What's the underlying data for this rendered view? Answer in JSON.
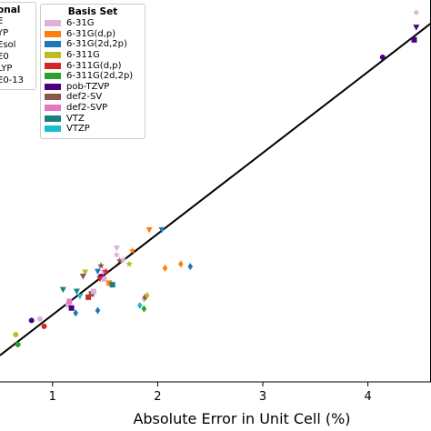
{
  "chart_data": {
    "type": "scatter",
    "xlabel": "Absolute Error in Unit Cell (%)",
    "ylabel": "",
    "x_ticks": [
      "1",
      "2",
      "3",
      "4"
    ],
    "xlim": [
      0.5,
      4.6
    ],
    "ylim": [
      0.0,
      4.6
    ],
    "grid": false,
    "legend_functional": {
      "title": "onal",
      "entries": [
        "E",
        "YP",
        "Esol",
        "E0",
        "LYP",
        "E0-13"
      ]
    },
    "legend_basis": {
      "title": "Basis Set",
      "entries": [
        {
          "name": "6-31G",
          "color": "#e0b0d8",
          "marker": "square"
        },
        {
          "name": "6-31G(d,p)",
          "color": "#ff7f0e",
          "marker": "square"
        },
        {
          "name": "6-31G(2d,2p)",
          "color": "#1f77b4",
          "marker": "square"
        },
        {
          "name": "6-311G",
          "color": "#bcbd22",
          "marker": "square"
        },
        {
          "name": "6-311G(d,p)",
          "color": "#d62728",
          "marker": "square"
        },
        {
          "name": "6-311G(2d,2p)",
          "color": "#2ca02c",
          "marker": "square"
        },
        {
          "name": "pob-TZVP",
          "color": "#4b0082",
          "marker": "square"
        },
        {
          "name": "def2-SV",
          "color": "#8c564b",
          "marker": "square"
        },
        {
          "name": "def2-SVP",
          "color": "#e377c2",
          "marker": "square"
        },
        {
          "name": "VTZ",
          "color": "#1a7f7f",
          "marker": "square"
        },
        {
          "name": "VTZP",
          "color": "#17becf",
          "marker": "square"
        }
      ]
    },
    "fit_line": {
      "x": [
        0.5,
        4.6
      ],
      "y": [
        0.32,
        4.32
      ],
      "color": "#000000"
    },
    "points": [
      {
        "x": 0.88,
        "y": 0.76,
        "color": "#e0b0d8",
        "marker": "circle"
      },
      {
        "x": 0.92,
        "y": 0.67,
        "color": "#d62728",
        "marker": "circle"
      },
      {
        "x": 0.8,
        "y": 0.74,
        "color": "#4b0082",
        "marker": "circle"
      },
      {
        "x": 0.65,
        "y": 0.57,
        "color": "#bcbd22",
        "marker": "circle"
      },
      {
        "x": 0.67,
        "y": 0.45,
        "color": "#2ca02c",
        "marker": "circle"
      },
      {
        "x": 1.15,
        "y": 0.93,
        "color": "#e0b0d8",
        "marker": "square"
      },
      {
        "x": 1.16,
        "y": 0.97,
        "color": "#e377c2",
        "marker": "square"
      },
      {
        "x": 1.18,
        "y": 0.89,
        "color": "#4b0082",
        "marker": "square"
      },
      {
        "x": 1.22,
        "y": 0.83,
        "color": "#1f77b4",
        "marker": "diamond"
      },
      {
        "x": 1.34,
        "y": 1.02,
        "color": "#d62728",
        "marker": "square"
      },
      {
        "x": 1.37,
        "y": 1.06,
        "color": "#8c564b",
        "marker": "square"
      },
      {
        "x": 1.39,
        "y": 1.09,
        "color": "#e0b0d8",
        "marker": "square"
      },
      {
        "x": 1.43,
        "y": 0.86,
        "color": "#1f77b4",
        "marker": "diamond"
      },
      {
        "x": 1.46,
        "y": 1.27,
        "color": "#4b0082",
        "marker": "circle"
      },
      {
        "x": 1.49,
        "y": 1.24,
        "color": "#e0b0d8",
        "marker": "square"
      },
      {
        "x": 1.54,
        "y": 1.19,
        "color": "#ff7f0e",
        "marker": "square"
      },
      {
        "x": 1.57,
        "y": 1.17,
        "color": "#1a7f7f",
        "marker": "square"
      },
      {
        "x": 1.49,
        "y": 1.33,
        "color": "#e377c2",
        "marker": "star"
      },
      {
        "x": 1.51,
        "y": 1.33,
        "color": "#d62728",
        "marker": "star"
      },
      {
        "x": 1.46,
        "y": 1.4,
        "color": "#8c564b",
        "marker": "star"
      },
      {
        "x": 1.61,
        "y": 1.53,
        "color": "#e0b0d8",
        "marker": "star"
      },
      {
        "x": 1.76,
        "y": 1.58,
        "color": "#ff7f0e",
        "marker": "star"
      },
      {
        "x": 1.64,
        "y": 1.46,
        "color": "#8c564b",
        "marker": "star"
      },
      {
        "x": 1.67,
        "y": 1.47,
        "color": "#e0b0d8",
        "marker": "star"
      },
      {
        "x": 1.73,
        "y": 1.42,
        "color": "#bcbd22",
        "marker": "star"
      },
      {
        "x": 1.1,
        "y": 1.11,
        "color": "#1a7f7f",
        "marker": "triangle-down"
      },
      {
        "x": 1.23,
        "y": 1.09,
        "color": "#1a7f7f",
        "marker": "triangle-down"
      },
      {
        "x": 1.31,
        "y": 1.32,
        "color": "#bcbd22",
        "marker": "triangle-down"
      },
      {
        "x": 1.43,
        "y": 1.33,
        "color": "#1f77b4",
        "marker": "triangle-down"
      },
      {
        "x": 1.45,
        "y": 1.24,
        "color": "#d62728",
        "marker": "triangle-down"
      },
      {
        "x": 1.61,
        "y": 1.61,
        "color": "#e0b0d8",
        "marker": "triangle-down"
      },
      {
        "x": 1.92,
        "y": 1.83,
        "color": "#ff7f0e",
        "marker": "triangle-down"
      },
      {
        "x": 2.04,
        "y": 1.83,
        "color": "#1f77b4",
        "marker": "triangle-down"
      },
      {
        "x": 1.26,
        "y": 1.03,
        "color": "#17becf",
        "marker": "triangle-down"
      },
      {
        "x": 1.29,
        "y": 1.27,
        "color": "#8c564b",
        "marker": "triangle-down"
      },
      {
        "x": 1.87,
        "y": 1.0,
        "color": "#e0b0d8",
        "marker": "diamond"
      },
      {
        "x": 1.88,
        "y": 1.02,
        "color": "#8c564b",
        "marker": "diamond"
      },
      {
        "x": 1.9,
        "y": 1.04,
        "color": "#bcbd22",
        "marker": "diamond"
      },
      {
        "x": 1.83,
        "y": 0.92,
        "color": "#17becf",
        "marker": "diamond"
      },
      {
        "x": 1.87,
        "y": 0.88,
        "color": "#2ca02c",
        "marker": "diamond"
      },
      {
        "x": 2.07,
        "y": 1.37,
        "color": "#ff7f0e",
        "marker": "diamond"
      },
      {
        "x": 2.22,
        "y": 1.42,
        "color": "#ff7f0e",
        "marker": "diamond"
      },
      {
        "x": 2.31,
        "y": 1.39,
        "color": "#1f77b4",
        "marker": "diamond"
      },
      {
        "x": 4.14,
        "y": 3.91,
        "color": "#4b0082",
        "marker": "circle"
      },
      {
        "x": 4.44,
        "y": 4.12,
        "color": "#4b0082",
        "marker": "square"
      },
      {
        "x": 4.46,
        "y": 4.27,
        "color": "#4b0082",
        "marker": "triangle-down"
      },
      {
        "x": 4.46,
        "y": 4.45,
        "color": "#e0b0d8",
        "marker": "star"
      }
    ]
  }
}
